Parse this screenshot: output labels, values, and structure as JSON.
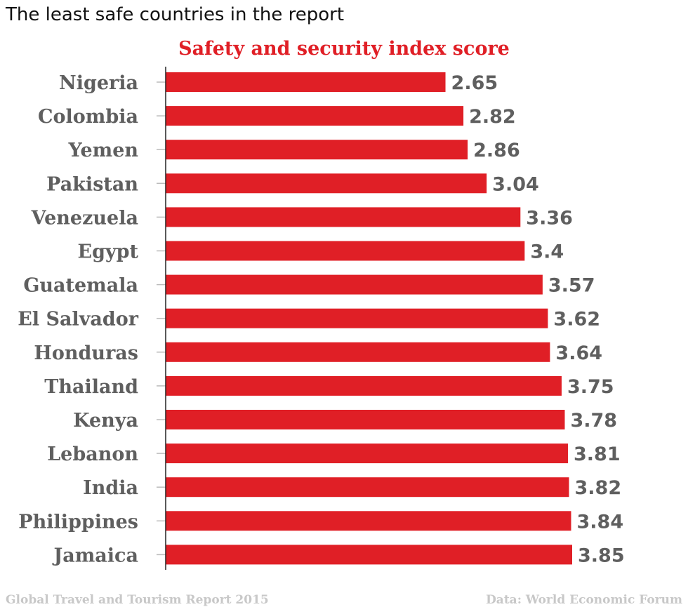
{
  "page_title": "The least safe countries in the report",
  "colors": {
    "bar": "#e01f26",
    "title": "#e01f26",
    "label": "#5f5f5f",
    "footer": "#c8c8c8",
    "axis": "#222222",
    "tick": "#bbbbbb"
  },
  "chart_data": {
    "type": "bar",
    "orientation": "horizontal",
    "title": "Safety and security index score",
    "categories": [
      "Nigeria",
      "Colombia",
      "Yemen",
      "Pakistan",
      "Venezuela",
      "Egypt",
      "Guatemala",
      "El Salvador",
      "Honduras",
      "Thailand",
      "Kenya",
      "Lebanon",
      "India",
      "Philippines",
      "Jamaica"
    ],
    "values": [
      2.65,
      2.82,
      2.86,
      3.04,
      3.36,
      3.4,
      3.57,
      3.62,
      3.64,
      3.75,
      3.78,
      3.81,
      3.82,
      3.84,
      3.85
    ],
    "value_labels": [
      "2.65",
      "2.82",
      "2.86",
      "3.04",
      "3.36",
      "3.4",
      "3.57",
      "3.62",
      "3.64",
      "3.75",
      "3.78",
      "3.81",
      "3.82",
      "3.84",
      "3.85"
    ],
    "xlim": [
      0,
      3.85
    ],
    "xlabel": "",
    "ylabel": "",
    "grid": false,
    "legend": "none"
  },
  "footer": {
    "source_left": "Global Travel and Tourism Report 2015",
    "source_right": "Data: World Economic Forum"
  }
}
